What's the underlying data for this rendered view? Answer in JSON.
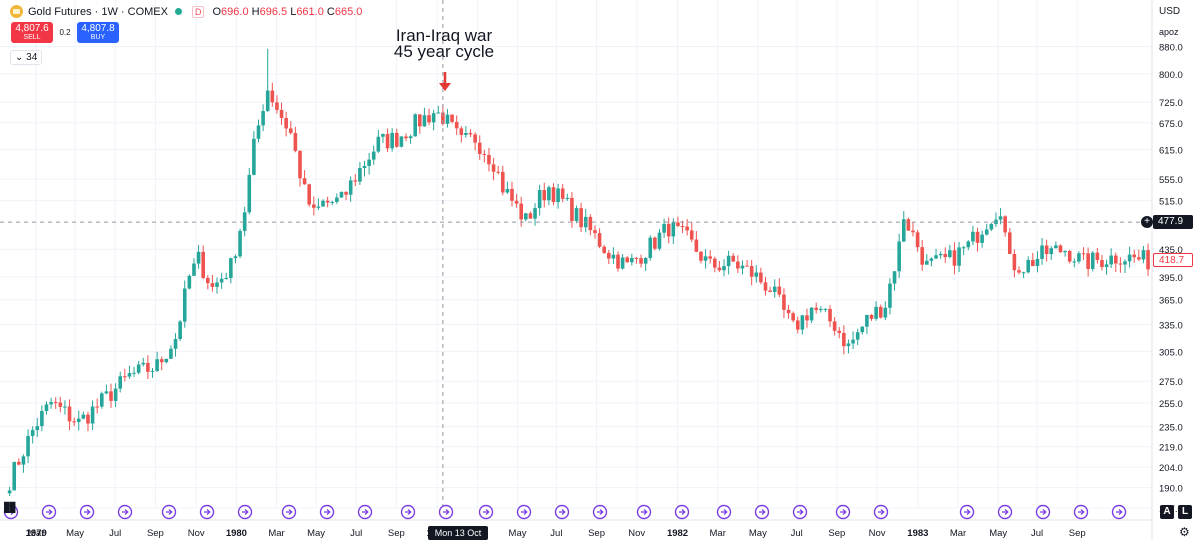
{
  "symbol": {
    "title": "Gold Futures · 1W · COMEX",
    "ohlc_label_o": "O",
    "ohlc_value_o": "696.0",
    "ohlc_label_h": "H",
    "ohlc_value_h": "696.5",
    "ohlc_label_l": "L",
    "ohlc_value_l": "661.0",
    "ohlc_label_c": "C",
    "ohlc_value_c": "665.0",
    "data_badge": "D",
    "icon": "gold-coin-icon"
  },
  "trading": {
    "sell_price": "4,807.6",
    "sell_label": "SELL",
    "spread": "0.2",
    "buy_price": "4,807.8",
    "buy_label": "BUY"
  },
  "indicators": {
    "count": "34"
  },
  "annotation": {
    "line1": "Iran-Iraq war",
    "line2": "45 year cycle"
  },
  "scale": {
    "currency": "USD",
    "name": "apoz",
    "current_price": "477.9",
    "last_price": "418.7",
    "auto_label": "A",
    "log_label": "L"
  },
  "crosshair": {
    "date": "Mon 13 Oct '80",
    "price": 477.9
  },
  "colors": {
    "up": "#26a69a",
    "down": "#ef5350",
    "event": "#7b3fe4",
    "grid": "#f0f3fa"
  },
  "chart_data": {
    "type": "candlestick",
    "title": "Gold Futures · 1W · COMEX",
    "y_scale": "log",
    "ylim": [
      177,
      900
    ],
    "y_ticks": [
      880.0,
      800.0,
      725.0,
      675.0,
      615.0,
      555.0,
      515.0,
      435.0,
      395.0,
      365.0,
      335.0,
      305.0,
      275.0,
      255.0,
      235.0,
      219.0,
      204.0,
      190.0,
      177.0
    ],
    "x_tick_labels": [
      "1979",
      "Mar",
      "May",
      "Jul",
      "Sep",
      "Nov",
      "1980",
      "Mar",
      "May",
      "Jul",
      "Sep",
      "1981",
      "Mar",
      "May",
      "Jul",
      "Sep",
      "Nov",
      "1982",
      "Mar",
      "May",
      "Jul",
      "Sep",
      "Nov",
      "1983",
      "Mar",
      "May",
      "Jul",
      "Sep"
    ],
    "x_range": [
      "1978-12-18",
      "1983-09-25"
    ],
    "waypoints": [
      [
        "1978-12-25",
        195
      ],
      [
        "1979-02-01",
        235
      ],
      [
        "1979-02-26",
        255
      ],
      [
        "1979-04-09",
        238
      ],
      [
        "1979-05-14",
        256
      ],
      [
        "1979-06-25",
        280
      ],
      [
        "1979-08-06",
        290
      ],
      [
        "1979-09-03",
        320
      ],
      [
        "1979-09-24",
        395
      ],
      [
        "1979-10-08",
        420
      ],
      [
        "1979-10-29",
        380
      ],
      [
        "1979-11-26",
        410
      ],
      [
        "1979-12-17",
        500
      ],
      [
        "1979-12-31",
        620
      ],
      [
        "1980-01-14",
        720
      ],
      [
        "1980-01-21",
        760
      ],
      [
        "1980-02-11",
        690
      ],
      [
        "1980-02-25",
        650
      ],
      [
        "1980-03-17",
        530
      ],
      [
        "1980-03-31",
        490
      ],
      [
        "1980-04-14",
        510
      ],
      [
        "1980-05-12",
        515
      ],
      [
        "1980-06-02",
        560
      ],
      [
        "1980-07-07",
        630
      ],
      [
        "1980-08-04",
        640
      ],
      [
        "1980-09-08",
        680
      ],
      [
        "1980-09-29",
        700
      ],
      [
        "1980-10-13",
        690
      ],
      [
        "1980-11-10",
        630
      ],
      [
        "1980-12-01",
        640
      ],
      [
        "1980-12-29",
        590
      ],
      [
        "1981-01-12",
        540
      ],
      [
        "1981-02-16",
        480
      ],
      [
        "1981-03-09",
        520
      ],
      [
        "1981-03-23",
        540
      ],
      [
        "1981-05-11",
        480
      ],
      [
        "1981-06-22",
        430
      ],
      [
        "1981-07-20",
        410
      ],
      [
        "1981-08-24",
        440
      ],
      [
        "1981-09-21",
        470
      ],
      [
        "1981-10-19",
        450
      ],
      [
        "1981-11-23",
        410
      ],
      [
        "1981-12-28",
        415
      ],
      [
        "1982-01-25",
        400
      ],
      [
        "1982-02-22",
        380
      ],
      [
        "1982-03-29",
        330
      ],
      [
        "1982-04-26",
        355
      ],
      [
        "1982-05-31",
        335
      ],
      [
        "1982-06-21",
        310
      ],
      [
        "1982-07-19",
        340
      ],
      [
        "1982-08-16",
        360
      ],
      [
        "1982-09-06",
        440
      ],
      [
        "1982-09-13",
        490
      ],
      [
        "1982-10-18",
        410
      ],
      [
        "1982-11-22",
        420
      ],
      [
        "1982-12-20",
        440
      ],
      [
        "1983-01-17",
        480
      ],
      [
        "1983-02-07",
        505
      ],
      [
        "1983-02-21",
        415
      ],
      [
        "1983-03-14",
        410
      ],
      [
        "1983-04-18",
        430
      ],
      [
        "1983-05-16",
        435
      ],
      [
        "1983-06-13",
        415
      ],
      [
        "1983-07-11",
        420
      ],
      [
        "1983-08-08",
        425
      ],
      [
        "1983-09-19",
        418
      ]
    ]
  }
}
